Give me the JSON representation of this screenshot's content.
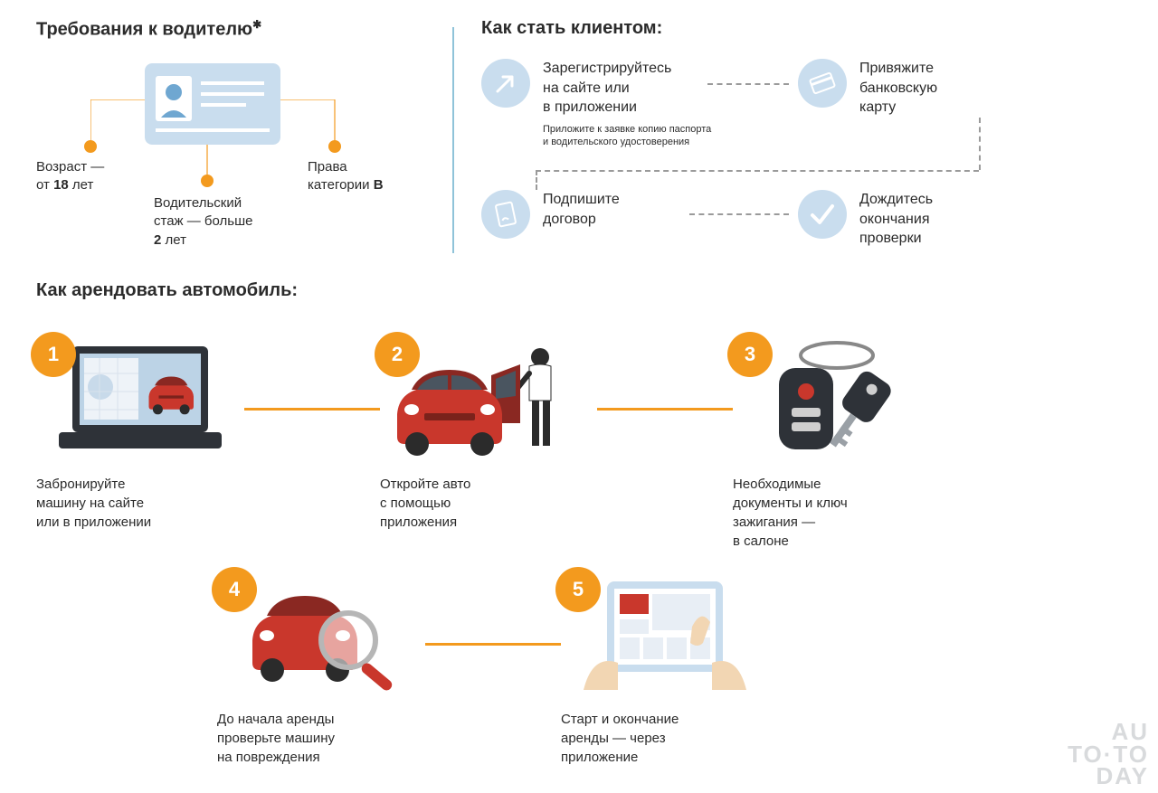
{
  "colors": {
    "orange": "#f39a1e",
    "lightblue": "#c9ddee",
    "blue": "#6fa7d1",
    "divider": "#8fc3d9",
    "text": "#2b2b2b",
    "dash": "#9a9a9a",
    "line": "#f39a1e",
    "carRed": "#c9372c",
    "carDark": "#8a2822",
    "laptopDark": "#2e3238",
    "screen": "#bcd3e6",
    "keyDark": "#2e3238",
    "tabletFrame": "#c9ddee",
    "watermark": "#d8dadc"
  },
  "requirements": {
    "title": "Требования к водителю",
    "items": {
      "age": "Возраст —\nот 18 лет",
      "exp": "Водительский\nстаж — больше\n2 лет",
      "cat": "Права\nкатегории B"
    }
  },
  "client": {
    "title": "Как стать клиентом:",
    "step1": "Зарегистрируйтесь\nна сайте или\nв приложении",
    "step1_sub": "Приложите к заявке копию паспорта\nи водительского удостоверения",
    "step2": "Привяжите\nбанковскую\nкарту",
    "step3": "Подпишите\nдоговор",
    "step4": "Дождитесь\nокончания\nпроверки"
  },
  "rent": {
    "title": "Как арендовать автомобиль:",
    "steps": [
      {
        "n": "1",
        "text": "Забронируйте\nмашину на сайте\nили в приложении"
      },
      {
        "n": "2",
        "text": "Откройте авто\nс помощью\nприложения"
      },
      {
        "n": "3",
        "text": "Необходимые\nдокументы и ключ\nзажигания —\nв салоне"
      },
      {
        "n": "4",
        "text": "До начала аренды\nпроверьте машину\nна повреждения"
      },
      {
        "n": "5",
        "text": "Старт и окончание\nаренды — через\nприложение"
      }
    ]
  },
  "watermark": "AU\nTO·TO\nDAY"
}
